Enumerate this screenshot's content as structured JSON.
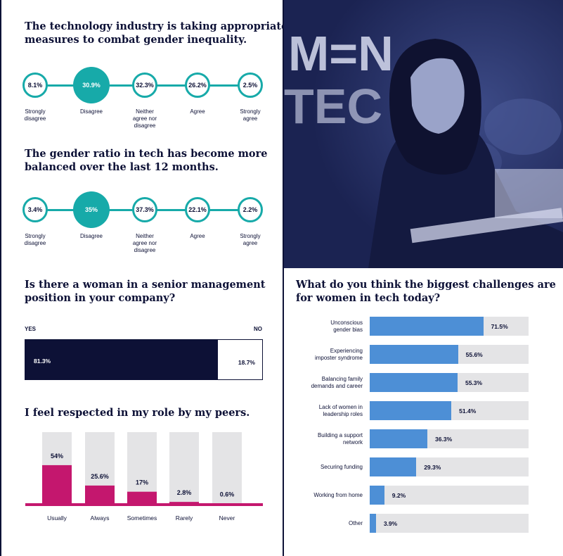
{
  "colors": {
    "navy": "#0d1136",
    "teal": "#17aaa9",
    "magenta": "#c4176e",
    "blue": "#4d8fd6",
    "track": "#e4e4e6"
  },
  "q1": {
    "title_lines": [
      "The technology industry is taking appropriate",
      "measures to combat gender inequality."
    ],
    "points": [
      {
        "value": "8.1%",
        "label_lines": [
          "Strongly",
          "disagree"
        ]
      },
      {
        "value": "30.9%",
        "label_lines": [
          "Disagree"
        ]
      },
      {
        "value": "32.3%",
        "label_lines": [
          "Neither",
          "agree nor",
          "disagree"
        ]
      },
      {
        "value": "26.2%",
        "label_lines": [
          "Agree"
        ]
      },
      {
        "value": "2.5%",
        "label_lines": [
          "Strongly",
          "agree"
        ]
      }
    ]
  },
  "q2": {
    "title_lines": [
      "The gender ratio in tech has become more",
      "balanced over the last 12 months."
    ],
    "points": [
      {
        "value": "3.4%",
        "label_lines": [
          "Strongly",
          "disagree"
        ]
      },
      {
        "value": "35%",
        "label_lines": [
          "Disagree"
        ]
      },
      {
        "value": "37.3%",
        "label_lines": [
          "Neither",
          "agree nor",
          "disagree"
        ]
      },
      {
        "value": "22.1%",
        "label_lines": [
          "Agree"
        ]
      },
      {
        "value": "2.2%",
        "label_lines": [
          "Strongly",
          "agree"
        ]
      }
    ]
  },
  "q3": {
    "title_lines": [
      "Is there a woman in a senior management",
      "position in your company?"
    ],
    "yes_label": "YES",
    "no_label": "NO",
    "yes_value": 81.3,
    "no_value": 18.7,
    "yes_text": "81.3%",
    "no_text": "18.7%"
  },
  "q4": {
    "title_lines": [
      "I feel respected in my role by my peers."
    ]
  },
  "q5": {
    "title_lines": [
      "What do you think the biggest challenges are",
      "for women in tech today?"
    ]
  },
  "photo": {
    "sign_lines": [
      "M=N",
      "TEC"
    ]
  },
  "chart_data": [
    {
      "type": "bar",
      "categories": [
        "Usually",
        "Always",
        "Sometimes",
        "Rarely",
        "Never"
      ],
      "values": [
        54,
        25.6,
        17,
        2.8,
        0.6
      ],
      "value_labels": [
        "54%",
        "25.6%",
        "17%",
        "2.8%",
        "0.6%"
      ],
      "ylim": [
        0,
        100
      ]
    },
    {
      "type": "bar",
      "orientation": "horizontal",
      "categories": [
        [
          "Unconscious",
          "gender bias"
        ],
        [
          "Experiencing",
          "imposter syndrome"
        ],
        [
          "Balancing family",
          "demands and career"
        ],
        [
          "Lack of women in",
          "leadership roles"
        ],
        [
          "Building a support",
          "network"
        ],
        [
          "Securing funding"
        ],
        [
          "Working from home"
        ],
        [
          "Other"
        ]
      ],
      "values": [
        71.5,
        55.6,
        55.3,
        51.4,
        36.3,
        29.3,
        9.2,
        3.9
      ],
      "value_labels": [
        "71.5%",
        "55.6%",
        "55.3%",
        "51.4%",
        "36.3%",
        "29.3%",
        "9.2%",
        "3.9%"
      ],
      "xlim": [
        0,
        100
      ]
    }
  ]
}
